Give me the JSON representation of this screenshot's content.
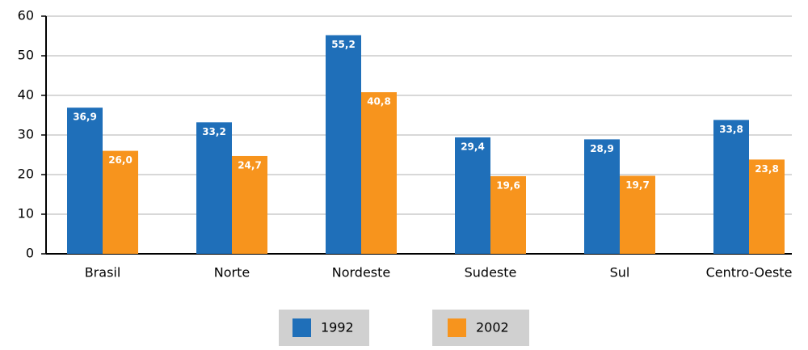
{
  "chart_data": {
    "type": "bar",
    "categories": [
      "Brasil",
      "Norte",
      "Nordeste",
      "Sudeste",
      "Sul",
      "Centro-Oeste"
    ],
    "series": [
      {
        "name": "1992",
        "color": "#1f6fb9",
        "values": [
          36.9,
          33.2,
          55.2,
          29.4,
          28.9,
          33.8
        ],
        "value_labels": [
          "36,9",
          "33,2",
          "55,2",
          "29,4",
          "28,9",
          "33,8"
        ]
      },
      {
        "name": "2002",
        "color": "#f7941d",
        "values": [
          26.0,
          24.7,
          40.8,
          19.6,
          19.7,
          23.8
        ],
        "value_labels": [
          "26,0",
          "24,7",
          "40,8",
          "19,6",
          "19,7",
          "23,8"
        ]
      }
    ],
    "ylim": [
      0,
      60
    ],
    "yticks": [
      0,
      10,
      20,
      30,
      40,
      50,
      60
    ],
    "grid": true
  }
}
